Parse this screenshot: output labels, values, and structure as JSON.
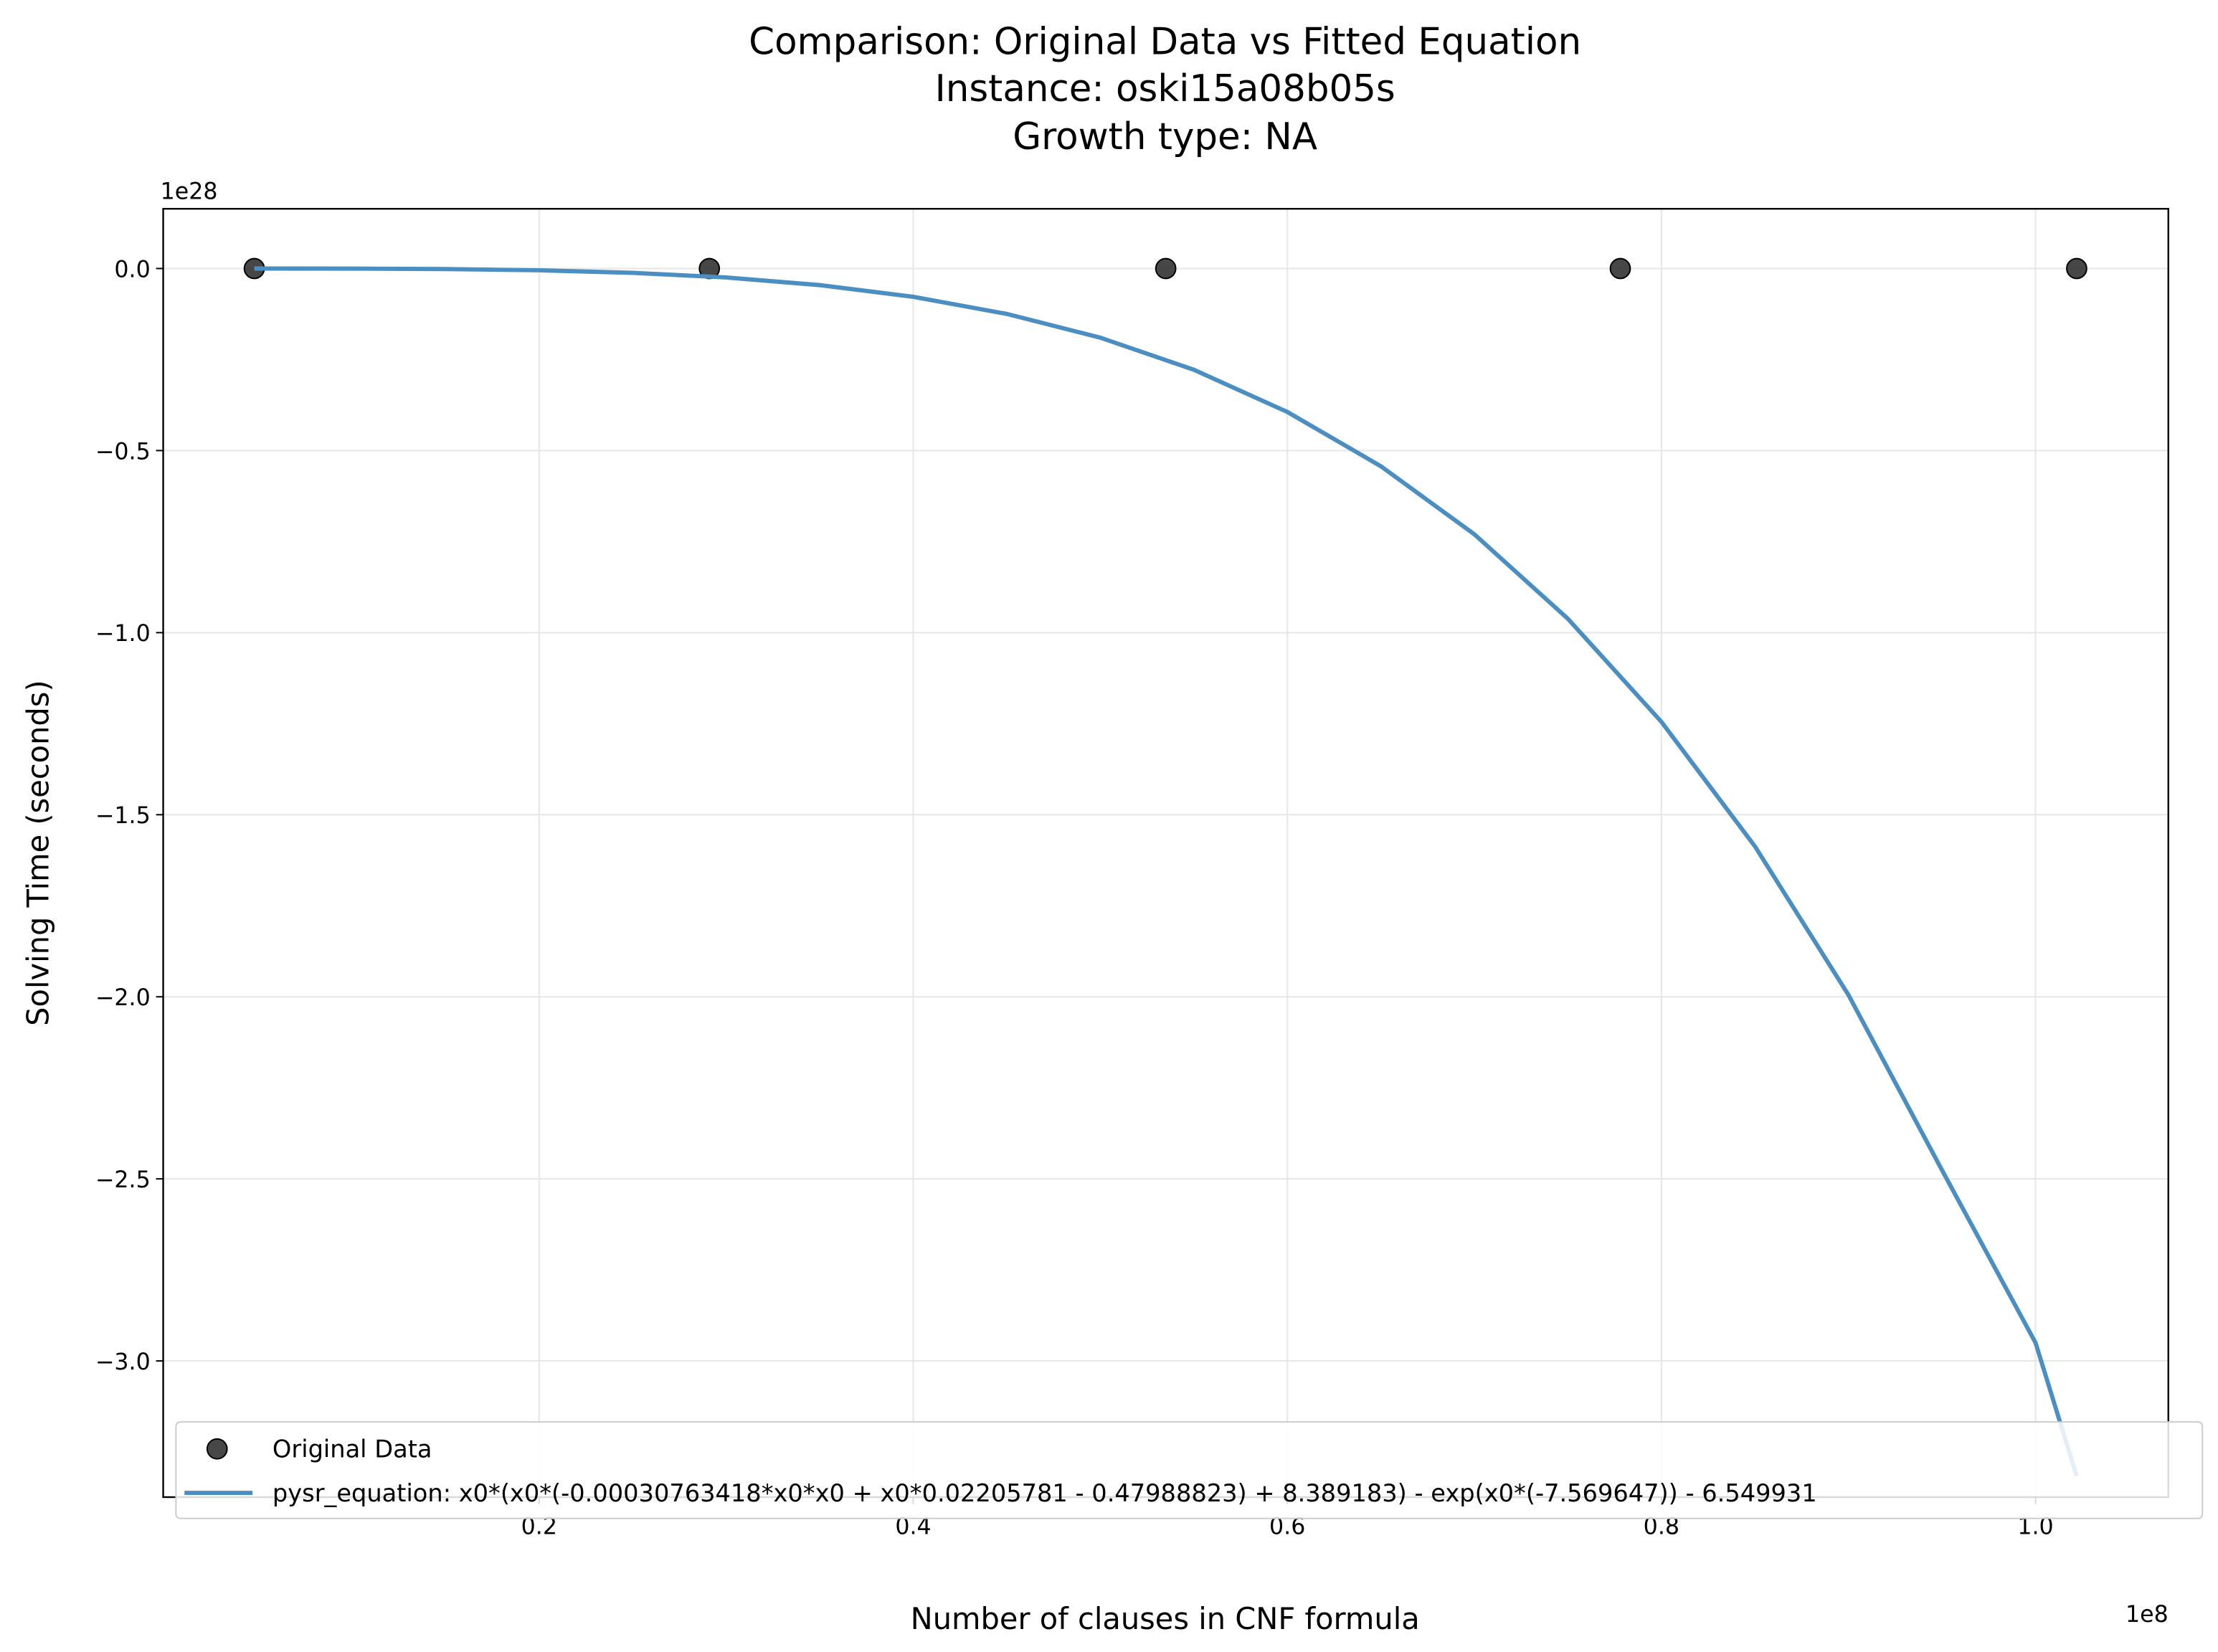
{
  "chart_data": {
    "type": "scatter",
    "title": [
      "Comparison: Original Data vs Fitted Equation",
      "Instance: oski15a08b05s",
      "Growth type: NA"
    ],
    "x_label": "Number of clauses in CNF formula",
    "y_label": "Solving Time (seconds)",
    "x_offset_label": "1e8",
    "y_offset_label": "1e28",
    "xlim": [
      -0.001,
      1.071
    ],
    "ylim": [
      -3.374,
      0.164
    ],
    "xticks": [
      0.2,
      0.4,
      0.6,
      0.8,
      {
        "value": 1.0,
        "label": "1.0"
      }
    ],
    "yticks": [
      {
        "value": 0,
        "label": "0.0"
      },
      {
        "value": -0.5,
        "label": "−0.5"
      },
      {
        "value": -1.0,
        "label": "−1.0"
      },
      {
        "value": -1.5,
        "label": "−1.5"
      },
      {
        "value": -2.0,
        "label": "−2.0"
      },
      {
        "value": -2.5,
        "label": "−2.5"
      },
      {
        "value": -3.0,
        "label": "−3.0"
      }
    ],
    "grid": true,
    "legend": "lower left",
    "series": [
      {
        "name": "Original Data",
        "type": "scatter",
        "color": "#333333",
        "x": [
          0.0477,
          0.291,
          0.535,
          0.778,
          1.022
        ],
        "values": [
          0,
          0,
          0,
          0,
          0
        ]
      },
      {
        "name": "pysr_equation: x0*(x0*(-0.00030763418*x0*x0 + x0*0.02205781 - 0.47988823) + 8.389183) - exp(x0*(-7.569647)) - 6.549931",
        "type": "line",
        "color": "#4a8ec2",
        "x": [
          0.0477,
          0.1,
          0.15,
          0.2,
          0.25,
          0.3,
          0.35,
          0.4,
          0.45,
          0.5,
          0.55,
          0.6,
          0.65,
          0.7,
          0.75,
          0.8,
          0.85,
          0.9,
          0.95,
          1.0,
          1.022
        ],
        "values": [
          0,
          -0.0003,
          -0.0015,
          -0.0049,
          -0.0119,
          -0.0246,
          -0.0456,
          -0.0778,
          -0.1247,
          -0.19,
          -0.278,
          -0.394,
          -0.543,
          -0.73,
          -0.962,
          -1.245,
          -1.587,
          -1.995,
          -2.476,
          -2.95,
          -3.316
        ]
      }
    ]
  }
}
